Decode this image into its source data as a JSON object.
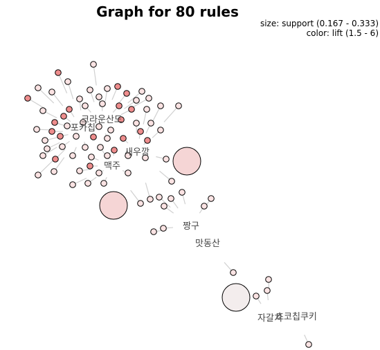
{
  "title": "Graph for 80 rules",
  "legend": {
    "size": "size: support (0.167 - 0.333)",
    "color": "color: lift (1.5 - 6)"
  },
  "nodes": [
    {
      "label": "크라운산도"
    },
    {
      "label": "포카칩"
    },
    {
      "label": "새우깡"
    },
    {
      "label": "맥주"
    },
    {
      "label": "짱구"
    },
    {
      "label": "맛동산"
    },
    {
      "label": "자갈치"
    },
    {
      "label": "초코칩쿠키"
    }
  ]
}
